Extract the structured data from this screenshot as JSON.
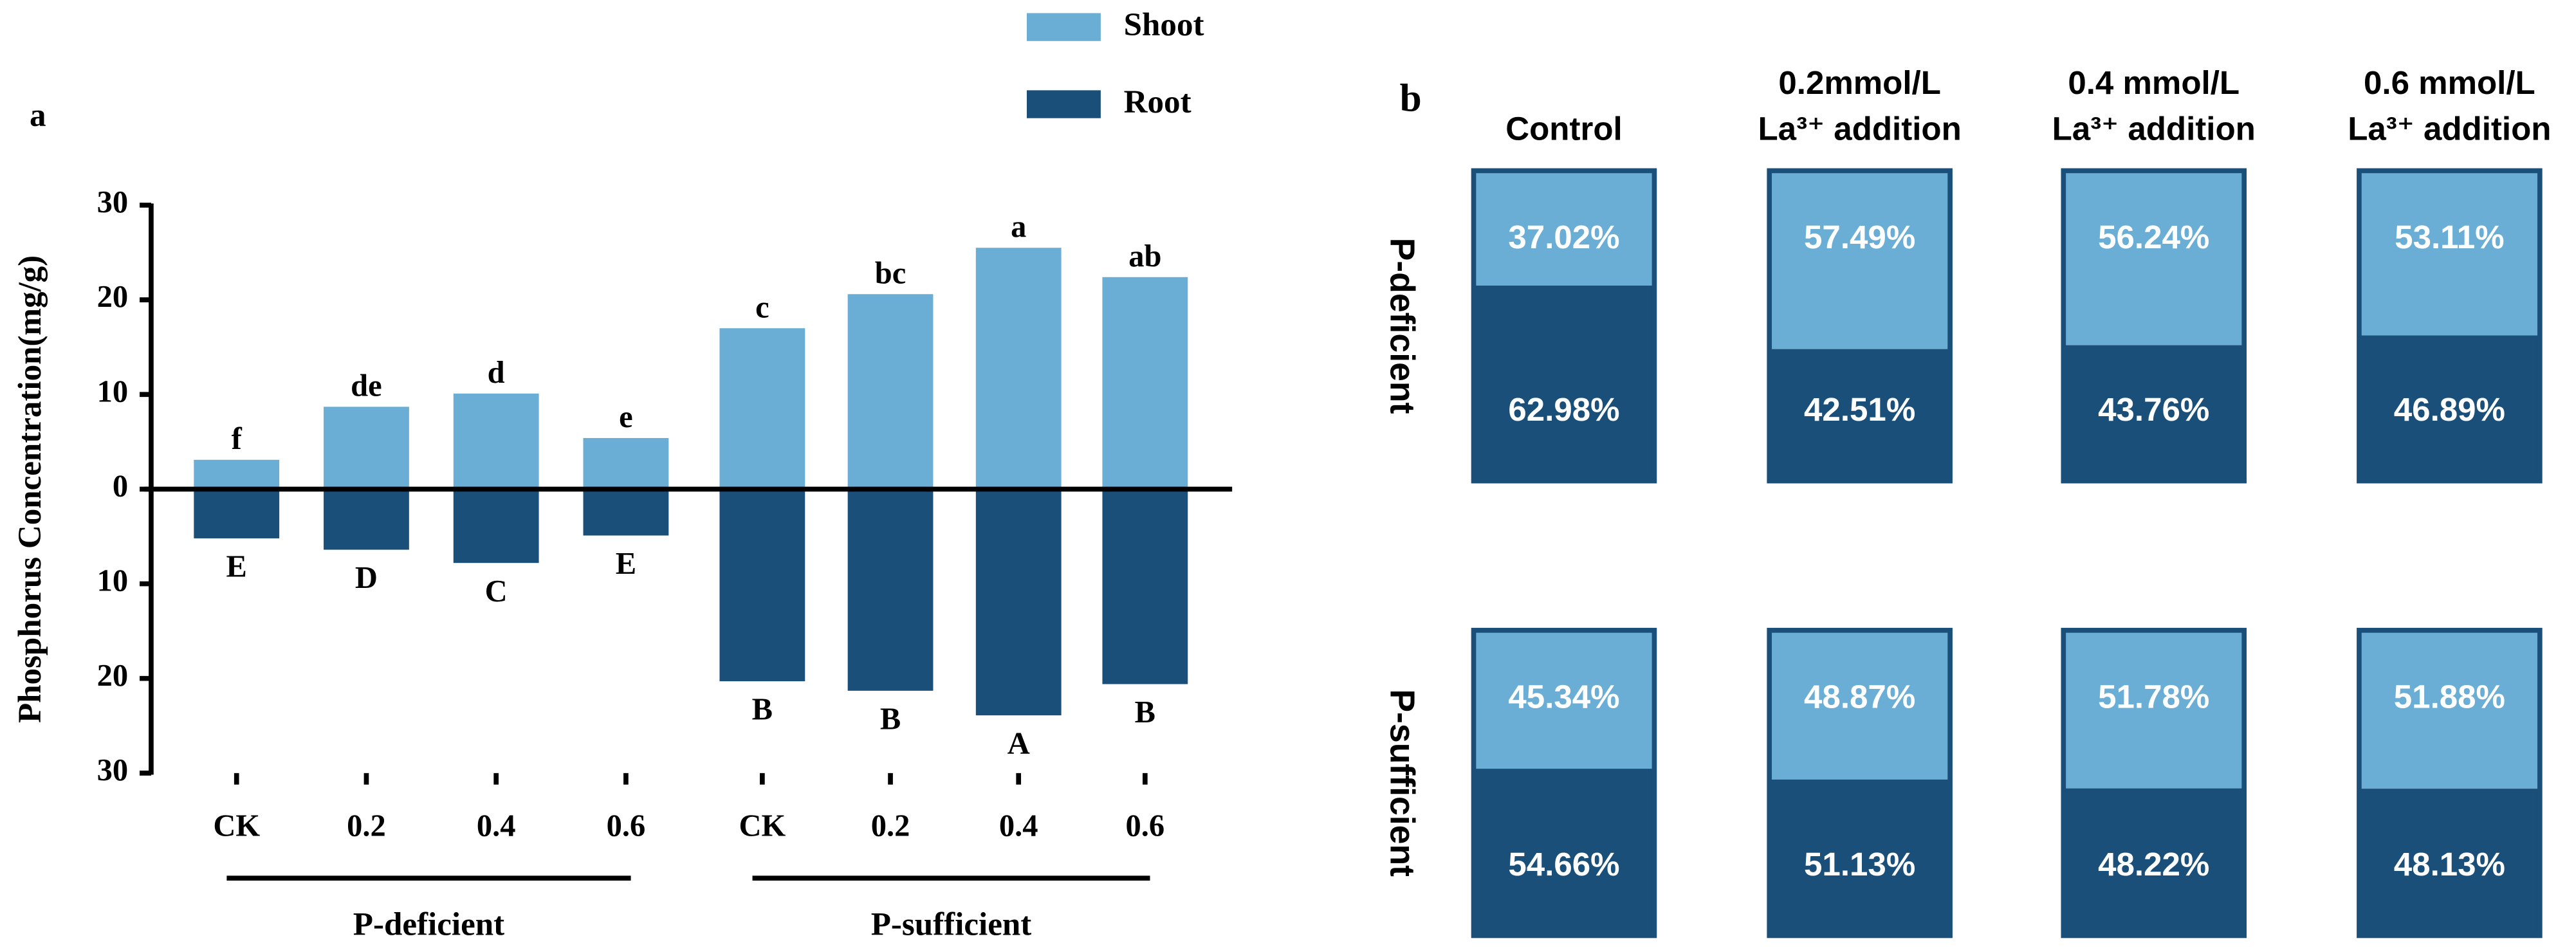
{
  "chart_data": [
    {
      "type": "diverging_bar",
      "panel_label": "a",
      "y_label": "Phosphorus Concentration(mg/g)",
      "categories": [
        "CK",
        "0.2",
        "0.4",
        "0.6",
        "CK",
        "0.2",
        "0.4",
        "0.6"
      ],
      "groups": [
        {
          "name": "P-deficient",
          "from": 0,
          "to": 3
        },
        {
          "name": "P-sufficient",
          "from": 4,
          "to": 7
        }
      ],
      "series": [
        {
          "name": "Shoot",
          "color": "#6aaed6",
          "values": [
            3.1,
            8.7,
            10.1,
            5.4,
            17.0,
            20.6,
            25.5,
            22.4
          ],
          "letters": [
            "f",
            "de",
            "d",
            "e",
            "c",
            "bc",
            "a",
            "ab"
          ]
        },
        {
          "name": "Root",
          "color": "#1a4f7a",
          "values": [
            -5.2,
            -6.4,
            -7.8,
            -4.9,
            -20.3,
            -21.3,
            -23.9,
            -20.6
          ],
          "letters": [
            "E",
            "D",
            "C",
            "E",
            "B",
            "B",
            "A",
            "B"
          ]
        }
      ],
      "ylim": [
        -30,
        30
      ],
      "yticks": [
        30,
        20,
        10,
        0,
        {
          "value": -10,
          "label": "10"
        },
        {
          "value": -20,
          "label": "20"
        },
        {
          "value": -30,
          "label": "30"
        }
      ]
    },
    {
      "type": "stacked_percent",
      "panel_label": "b",
      "columns": [
        [
          "Control"
        ],
        [
          "0.2mmol/L",
          "La³⁺ addition"
        ],
        [
          "0.4 mmol/L",
          "La³⁺ addition"
        ],
        [
          "0.6 mmol/L",
          "La³⁺ addition"
        ]
      ],
      "rows": [
        "P-deficient",
        "P-sufficient"
      ],
      "series": [
        {
          "color": "#6aaed6",
          "values": [
            [
              37.02,
              57.49,
              56.24,
              53.11
            ],
            [
              45.34,
              48.87,
              51.78,
              51.88
            ]
          ],
          "value_labels": [
            [
              "37.02%",
              "57.49%",
              "56.24%",
              "53.11%"
            ],
            [
              "45.34%",
              "48.87%",
              "51.78%",
              "51.88%"
            ]
          ]
        },
        {
          "color": "#1a4f7a",
          "values": [
            [
              62.98,
              42.51,
              43.76,
              46.89
            ],
            [
              54.66,
              51.13,
              48.22,
              48.13
            ]
          ],
          "value_labels": [
            [
              "62.98%",
              "42.51%",
              "43.76%",
              "46.89%"
            ],
            [
              "54.66%",
              "51.13%",
              "48.22%",
              "48.13%"
            ]
          ]
        }
      ]
    }
  ]
}
